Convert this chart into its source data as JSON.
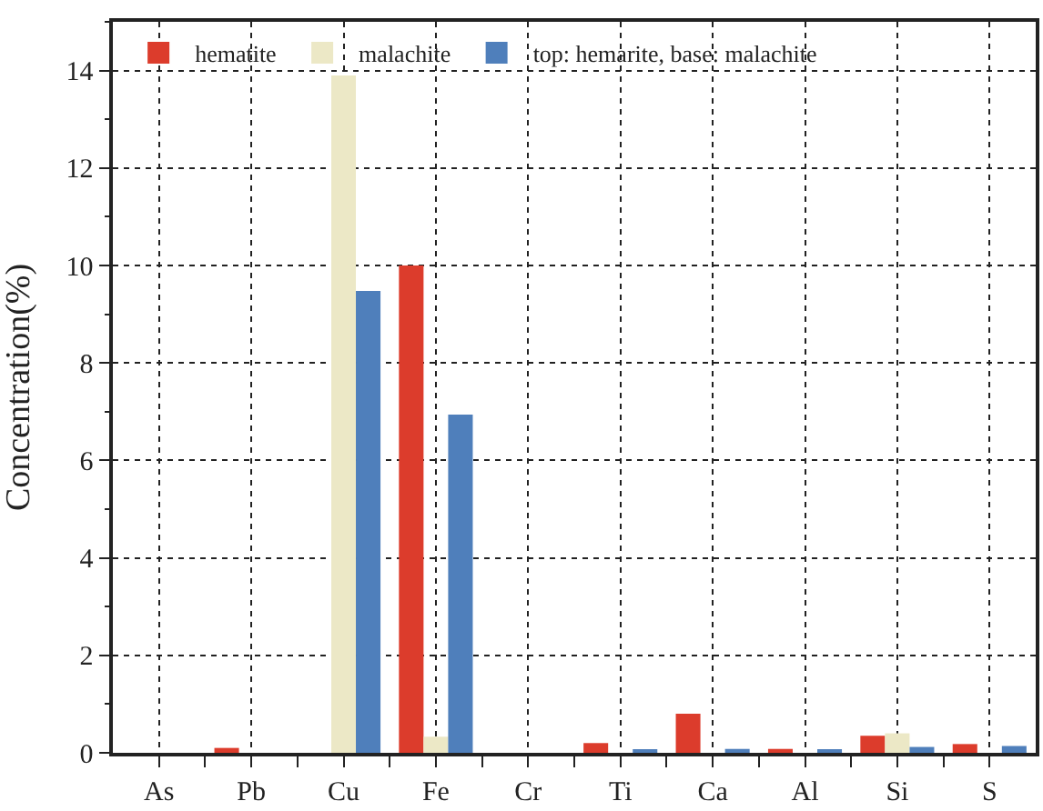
{
  "chart_data": {
    "type": "bar",
    "ylabel": "Concentration(%)",
    "categories": [
      "As",
      "Pb",
      "Cu",
      "Fe",
      "Cr",
      "Ti",
      "Ca",
      "Al",
      "Si",
      "S"
    ],
    "series": [
      {
        "name": "hematite",
        "color": "#dc3c2c",
        "values": [
          null,
          0.1,
          null,
          10.0,
          null,
          0.2,
          0.8,
          0.08,
          0.35,
          0.18
        ]
      },
      {
        "name": "malachite",
        "color": "#ece8c6",
        "values": [
          null,
          null,
          13.9,
          0.33,
          null,
          null,
          null,
          null,
          0.4,
          null
        ]
      },
      {
        "name": "top: hemarite, base: malachite",
        "color": "#4f7fbb",
        "values": [
          null,
          null,
          9.48,
          6.94,
          null,
          0.05,
          0.08,
          0.04,
          0.12,
          0.14
        ]
      }
    ],
    "ylim": [
      0,
      15
    ],
    "yticks": [
      0,
      2,
      4,
      6,
      8,
      10,
      12,
      14
    ],
    "grid": true,
    "legend": "top left"
  }
}
